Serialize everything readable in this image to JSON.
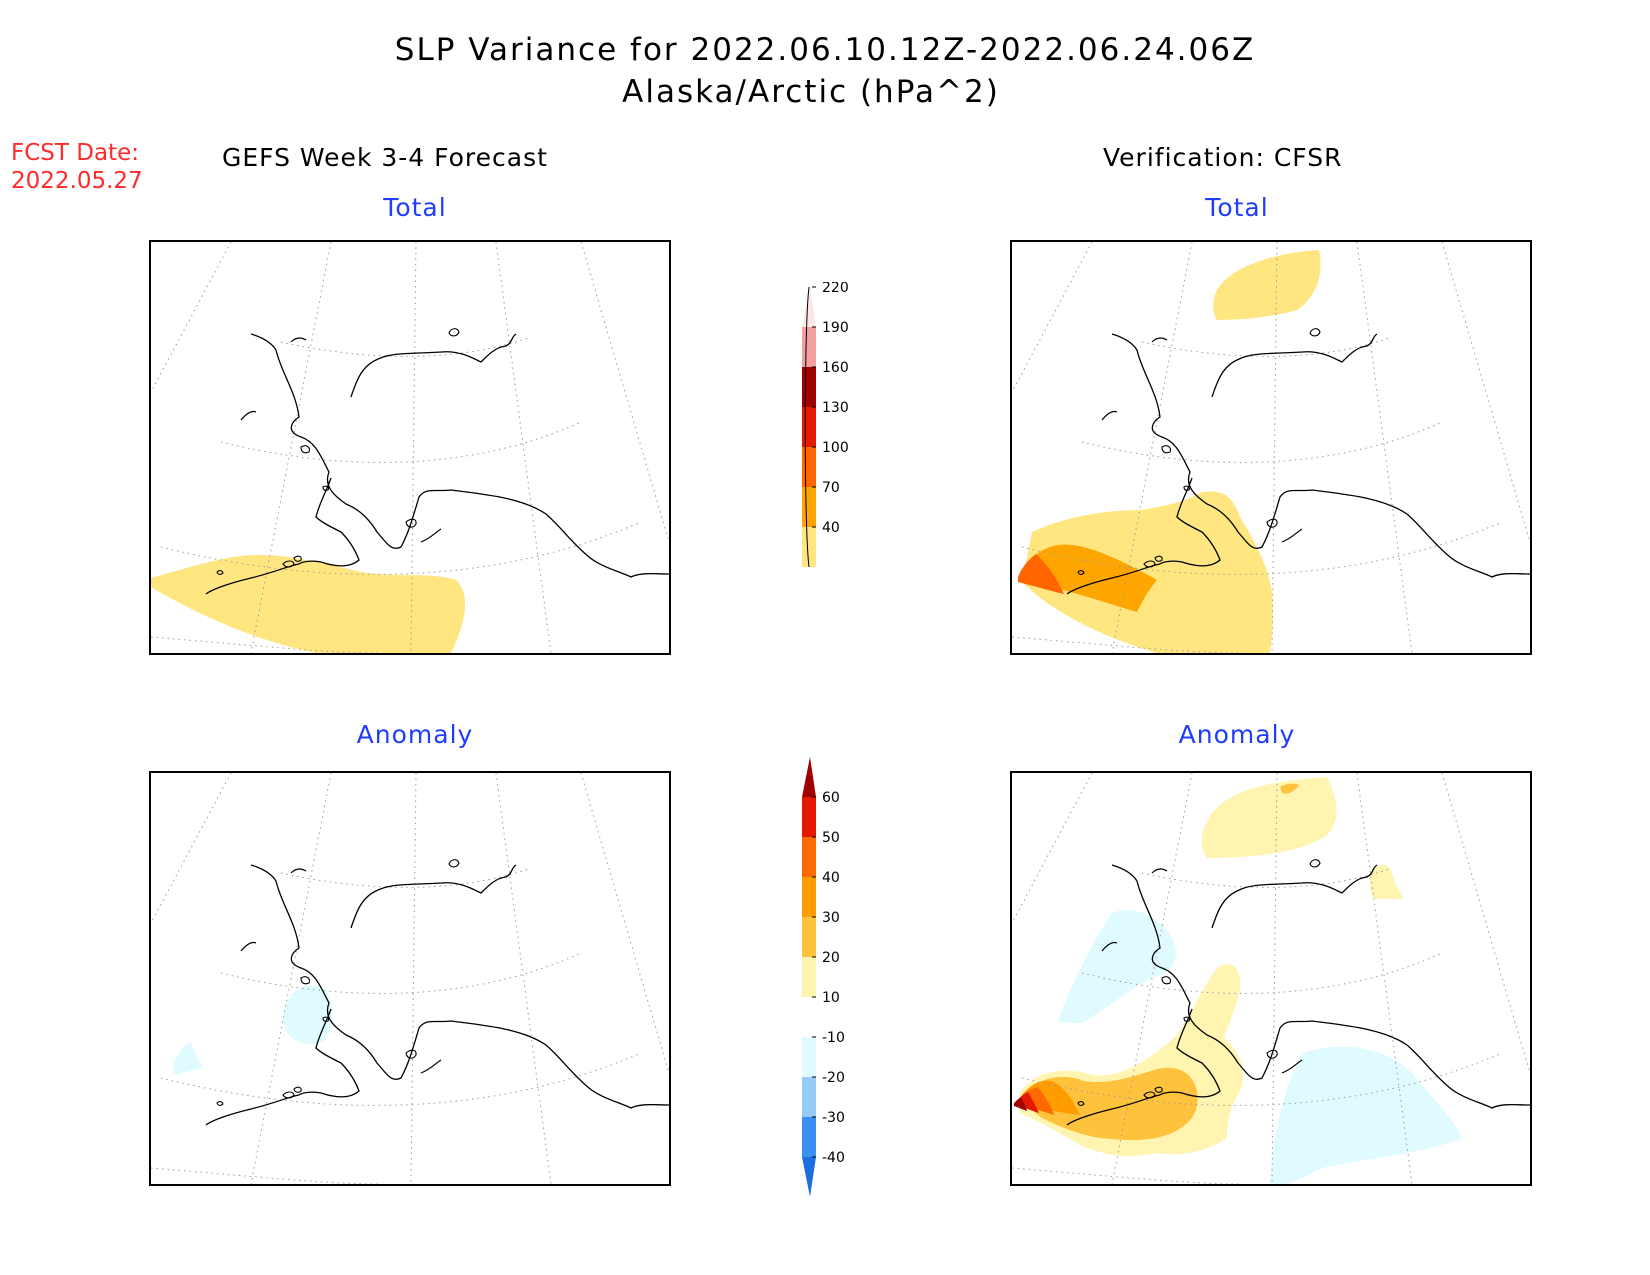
{
  "title": {
    "line1": "SLP Variance for 2022.06.10.12Z-2022.06.24.06Z",
    "line2": "Alaska/Arctic (hPa^2)"
  },
  "fcst": {
    "label": "FCST Date:",
    "date": "2022.05.27"
  },
  "headers": {
    "left": "GEFS Week 3-4 Forecast",
    "right": "Verification: CFSR"
  },
  "panels": {
    "fc_total": {
      "title": "Total"
    },
    "ver_total": {
      "title": "Total"
    },
    "fc_anom": {
      "title": "Anomaly"
    },
    "ver_anom": {
      "title": "Anomaly"
    }
  },
  "colorbar_total": {
    "labels": [
      "40",
      "70",
      "100",
      "130",
      "160",
      "190",
      "220"
    ],
    "colors": [
      "#ffe680",
      "#ffa500",
      "#ff6600",
      "#e61a00",
      "#a00000",
      "#f4a0a0",
      "#fde8e8"
    ]
  },
  "colorbar_anom": {
    "labels": [
      "-40",
      "-30",
      "-20",
      "-10",
      "10",
      "20",
      "30",
      "40",
      "50",
      "60"
    ],
    "colors": [
      "#1c6fe0",
      "#3b8ff0",
      "#96cbf7",
      "#dffbff",
      "#ffffff",
      "#fff5b0",
      "#ffc23c",
      "#ff9d00",
      "#ff6a00",
      "#e41a00",
      "#a00000"
    ]
  }
}
